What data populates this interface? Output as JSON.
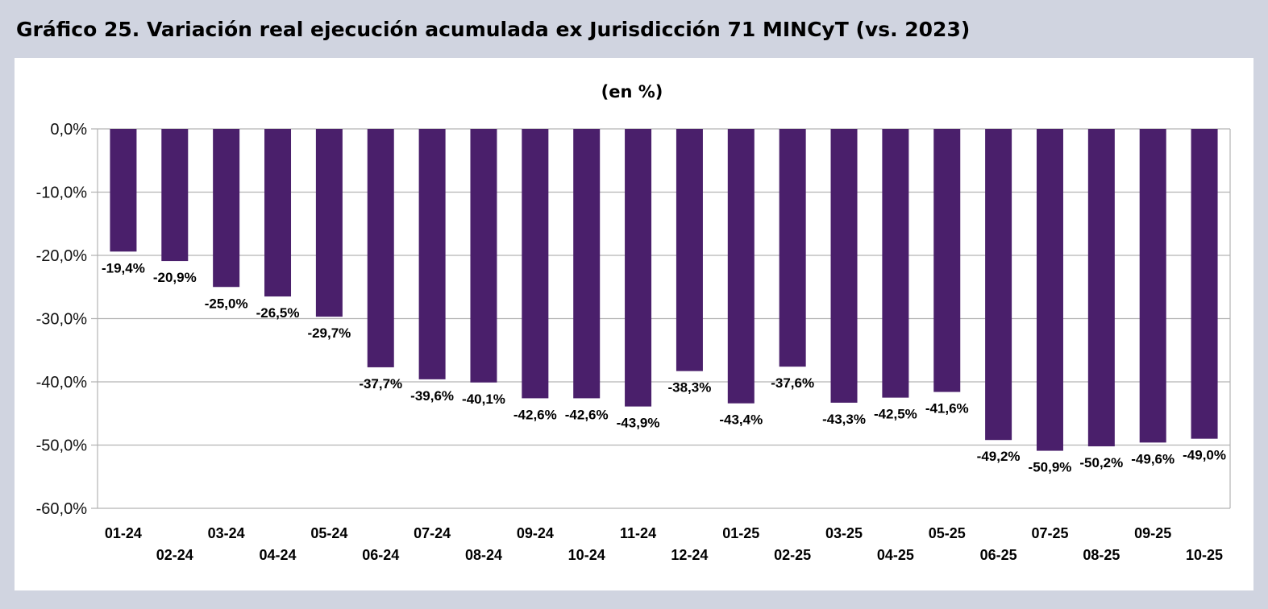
{
  "figure": {
    "title": "Gráfico 25. Variación real ejecución acumulada ex Jurisdicción 71 MINCyT (vs. 2023)"
  },
  "chart_data": {
    "type": "bar",
    "title": "Gráfico 25. Variación real ejecución acumulada ex Jurisdicción 71 MINCyT (vs. 2023)",
    "subtitle": "(en %)",
    "xlabel": "",
    "ylabel": "",
    "ylim": [
      -60,
      0
    ],
    "yticks": [
      0,
      -10,
      -20,
      -30,
      -40,
      -50,
      -60
    ],
    "ytick_labels": [
      "0,0%",
      "-10,0%",
      "-20,0%",
      "-30,0%",
      "-40,0%",
      "-50,0%",
      "-60,0%"
    ],
    "grid": true,
    "legend": "none",
    "bar_color": "#4a1f6b",
    "categories": [
      "01-24",
      "02-24",
      "03-24",
      "04-24",
      "05-24",
      "06-24",
      "07-24",
      "08-24",
      "09-24",
      "10-24",
      "11-24",
      "12-24",
      "01-25",
      "02-25",
      "03-25",
      "04-25",
      "05-25",
      "06-25",
      "07-25",
      "08-25",
      "09-25",
      "10-25"
    ],
    "values": [
      -19.4,
      -20.9,
      -25.0,
      -26.5,
      -29.7,
      -37.7,
      -39.6,
      -40.1,
      -42.6,
      -42.6,
      -43.9,
      -38.3,
      -43.4,
      -37.6,
      -43.3,
      -42.5,
      -41.6,
      -49.2,
      -50.9,
      -50.2,
      -49.6,
      -49.0
    ],
    "value_labels": [
      "-19,4%",
      "-20,9%",
      "-25,0%",
      "-26,5%",
      "-29,7%",
      "-37,7%",
      "-39,6%",
      "-40,1%",
      "-42,6%",
      "-42,6%",
      "-43,9%",
      "-38,3%",
      "-43,4%",
      "-37,6%",
      "-43,3%",
      "-42,5%",
      "-41,6%",
      "-49,2%",
      "-50,9%",
      "-50,2%",
      "-49,6%",
      "-49,0%"
    ]
  }
}
